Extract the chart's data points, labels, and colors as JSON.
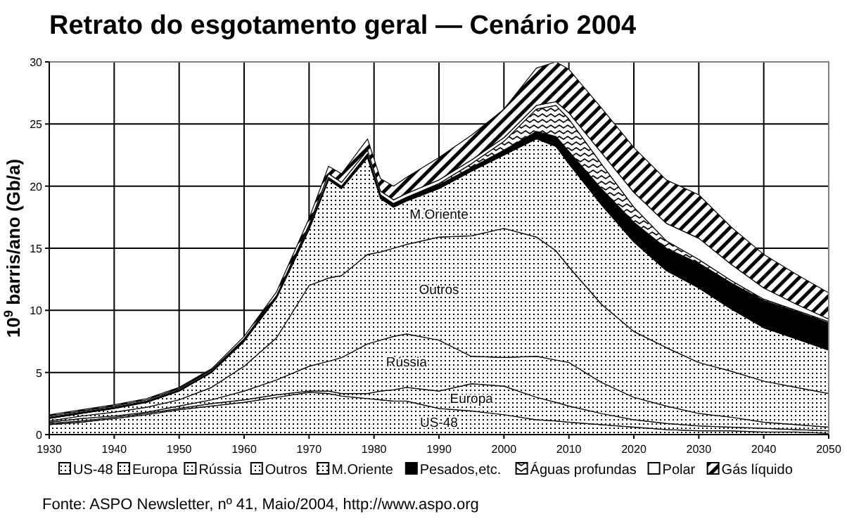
{
  "chart_data": {
    "type": "area",
    "stacked": true,
    "title": "Retrato do esgotamento geral — Cenário 2004",
    "ylabel": "10$^{9}$ barris/ano (Gb/a)",
    "x": [
      1930,
      1935,
      1940,
      1945,
      1950,
      1955,
      1960,
      1965,
      1970,
      1973,
      1975,
      1979,
      1981,
      1983,
      1985,
      1990,
      1995,
      2000,
      2005,
      2008,
      2010,
      2015,
      2020,
      2025,
      2030,
      2035,
      2040,
      2045,
      2050
    ],
    "xlim": [
      1930,
      2050
    ],
    "xticks": [
      1930,
      1940,
      1950,
      1960,
      1970,
      1980,
      1990,
      2000,
      2010,
      2020,
      2030,
      2040,
      2050
    ],
    "ylim": [
      0,
      30
    ],
    "yticks": [
      0,
      5,
      10,
      15,
      20,
      25,
      30
    ],
    "grid": true,
    "legend": "bottom",
    "series": [
      {
        "name": "US-48",
        "color": "#000000",
        "values": [
          0.8,
          1.0,
          1.3,
          1.6,
          2.0,
          2.3,
          2.6,
          3.0,
          3.4,
          3.3,
          3.1,
          2.9,
          2.8,
          2.7,
          2.7,
          2.1,
          1.9,
          1.6,
          1.2,
          1.1,
          1.0,
          0.8,
          0.6,
          0.4,
          0.3,
          0.3,
          0.2,
          0.2,
          0.1
        ]
      },
      {
        "name": "Europa",
        "color": "#000000",
        "values": [
          0.1,
          0.1,
          0.1,
          0.1,
          0.1,
          0.2,
          0.2,
          0.2,
          0.1,
          0.2,
          0.2,
          0.4,
          0.7,
          0.9,
          1.1,
          1.4,
          2.2,
          2.3,
          1.8,
          1.5,
          1.3,
          0.9,
          0.6,
          0.5,
          0.4,
          0.3,
          0.3,
          0.2,
          0.2
        ]
      },
      {
        "name": "Rússia",
        "color": "#000000",
        "values": [
          0.1,
          0.2,
          0.1,
          0.1,
          0.2,
          0.3,
          0.7,
          1.2,
          2.0,
          2.4,
          2.9,
          4.0,
          4.1,
          4.3,
          4.3,
          4.1,
          2.2,
          2.3,
          3.3,
          3.4,
          3.5,
          2.5,
          1.8,
          1.4,
          1.0,
          0.8,
          0.5,
          0.4,
          0.3
        ]
      },
      {
        "name": "Outros",
        "color": "#000000",
        "values": [
          0.1,
          0.2,
          0.3,
          0.4,
          0.5,
          1.0,
          2.0,
          3.4,
          6.5,
          6.7,
          6.6,
          7.2,
          7.1,
          7.1,
          7.2,
          8.3,
          9.7,
          10.4,
          9.6,
          8.8,
          7.7,
          6.3,
          5.3,
          4.7,
          4.1,
          3.7,
          3.3,
          3.0,
          2.7
        ]
      },
      {
        "name": "M.Oriente",
        "color": "#000000",
        "values": [
          0.2,
          0.2,
          0.3,
          0.4,
          0.7,
          1.2,
          2.0,
          3.2,
          4.5,
          7.9,
          7.0,
          7.8,
          4.3,
          3.3,
          3.5,
          3.9,
          5.2,
          5.9,
          7.9,
          8.4,
          8.3,
          8.0,
          7.2,
          6.2,
          6.0,
          5.0,
          4.3,
          3.9,
          3.5
        ]
      },
      {
        "name": "Pesados,etc.",
        "color": "#000000",
        "values": [
          0.1,
          0.1,
          0.1,
          0.1,
          0.1,
          0.1,
          0.1,
          0.1,
          0.2,
          0.2,
          0.2,
          0.3,
          0.3,
          0.3,
          0.3,
          0.3,
          0.3,
          0.4,
          0.6,
          0.8,
          1.0,
          1.3,
          1.6,
          1.8,
          2.0,
          2.1,
          2.2,
          2.2,
          2.2
        ]
      },
      {
        "name": "Águas profundas",
        "color": "#000000",
        "values": [
          0,
          0,
          0,
          0,
          0,
          0,
          0,
          0,
          0,
          0,
          0,
          0,
          0,
          0,
          0,
          0.1,
          0.3,
          0.7,
          1.8,
          2.5,
          2.6,
          2.0,
          1.2,
          0.6,
          0.3,
          0.2,
          0.1,
          0.1,
          0.1
        ]
      },
      {
        "name": "Polar",
        "color": "#ffffff",
        "values": [
          0.1,
          0.1,
          0.1,
          0.1,
          0.1,
          0.1,
          0.1,
          0.1,
          0.2,
          0.3,
          0.3,
          0.3,
          0.3,
          0.3,
          0.3,
          0.3,
          0.3,
          0.3,
          0.3,
          0.3,
          0.5,
          0.9,
          1.2,
          1.4,
          1.7,
          1.3,
          0.9,
          0.5,
          0.2
        ]
      },
      {
        "name": "Gás líquido",
        "color": "#000000",
        "values": [
          0.1,
          0.1,
          0.1,
          0.1,
          0.1,
          0.1,
          0.2,
          0.3,
          0.5,
          0.6,
          0.7,
          0.9,
          1.0,
          1.1,
          1.3,
          1.8,
          2.0,
          2.3,
          3.0,
          3.2,
          3.5,
          3.6,
          3.6,
          3.5,
          3.5,
          3.0,
          2.7,
          2.4,
          2.1
        ]
      }
    ],
    "annotations": [
      "Fonte: ASPO Newsletter, nº 41, Maio/2004, http://www.aspo.org"
    ]
  }
}
